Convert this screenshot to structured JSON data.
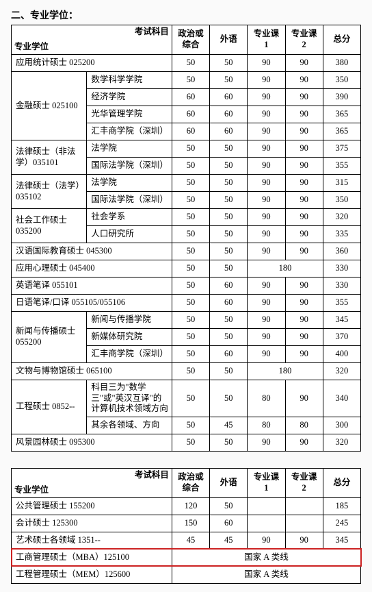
{
  "section_title": "二、专业学位：",
  "headers": {
    "diag_top": "考试科目",
    "diag_bottom": "专业学位",
    "c1": "政治或综合",
    "c2": "外语",
    "c3": "专业课 1",
    "c4": "专业课 2",
    "c5": "总分"
  },
  "t1": {
    "r0": {
      "deg": "应用统计硕士 025200",
      "v": [
        "50",
        "50",
        "90",
        "90",
        "380"
      ]
    },
    "fin": {
      "deg": "金融硕士 025100",
      "rows": [
        {
          "sub": "数学科学学院",
          "v": [
            "50",
            "50",
            "90",
            "90",
            "350"
          ]
        },
        {
          "sub": "经济学院",
          "v": [
            "60",
            "60",
            "90",
            "90",
            "390"
          ]
        },
        {
          "sub": "光华管理学院",
          "v": [
            "60",
            "60",
            "90",
            "90",
            "365"
          ]
        },
        {
          "sub": "汇丰商学院（深圳）",
          "v": [
            "60",
            "60",
            "90",
            "90",
            "365"
          ]
        }
      ]
    },
    "law1": {
      "deg": "法律硕士（非法学）035101",
      "rows": [
        {
          "sub": "法学院",
          "v": [
            "50",
            "50",
            "90",
            "90",
            "375"
          ]
        },
        {
          "sub": "国际法学院（深圳）",
          "v": [
            "50",
            "50",
            "90",
            "90",
            "355"
          ]
        }
      ]
    },
    "law2": {
      "deg": "法律硕士（法学）035102",
      "rows": [
        {
          "sub": "法学院",
          "v": [
            "50",
            "50",
            "90",
            "90",
            "315"
          ]
        },
        {
          "sub": "国际法学院（深圳）",
          "v": [
            "50",
            "50",
            "90",
            "90",
            "350"
          ]
        }
      ]
    },
    "soc": {
      "deg": "社会工作硕士 035200",
      "rows": [
        {
          "sub": "社会学系",
          "v": [
            "50",
            "50",
            "90",
            "90",
            "320"
          ]
        },
        {
          "sub": "人口研究所",
          "v": [
            "50",
            "50",
            "90",
            "90",
            "335"
          ]
        }
      ]
    },
    "r1": {
      "deg": "汉语国际教育硕士 045300",
      "v": [
        "50",
        "50",
        "90",
        "90",
        "360"
      ]
    },
    "r2": {
      "deg": "应用心理硕士 045400",
      "v": [
        "50",
        "50",
        "180",
        "",
        "330"
      ]
    },
    "r3": {
      "deg": "英语笔译 055101",
      "v": [
        "50",
        "60",
        "90",
        "90",
        "330"
      ]
    },
    "r4": {
      "deg": "日语笔译/口译 055105/055106",
      "v": [
        "50",
        "60",
        "90",
        "90",
        "355"
      ]
    },
    "news": {
      "deg": "新闻与传播硕士 055200",
      "rows": [
        {
          "sub": "新闻与传播学院",
          "v": [
            "50",
            "50",
            "90",
            "90",
            "345"
          ]
        },
        {
          "sub": "新媒体研究院",
          "v": [
            "50",
            "50",
            "90",
            "90",
            "370"
          ]
        },
        {
          "sub": "汇丰商学院（深圳）",
          "v": [
            "50",
            "60",
            "90",
            "90",
            "400"
          ]
        }
      ]
    },
    "r5": {
      "deg": "文物与博物馆硕士 065100",
      "v": [
        "50",
        "50",
        "180",
        "",
        "320"
      ]
    },
    "eng": {
      "deg": "工程硕士 0852--",
      "rows": [
        {
          "sub": "科目三为\"数学三\"或\"英汉互译\"的计算机技术领域方向",
          "v": [
            "50",
            "50",
            "80",
            "90",
            "340"
          ]
        },
        {
          "sub": "其余各领域、方向",
          "v": [
            "50",
            "45",
            "80",
            "80",
            "300"
          ]
        }
      ]
    },
    "r6": {
      "deg": "风景园林硕士 095300",
      "v": [
        "50",
        "50",
        "90",
        "90",
        "320"
      ]
    }
  },
  "t2": {
    "r0": {
      "deg": "公共管理硕士 155200",
      "v": [
        "120",
        "50",
        "",
        "",
        "185"
      ]
    },
    "r1": {
      "deg": "会计硕士 125300",
      "v": [
        "150",
        "60",
        "",
        "",
        "245"
      ]
    },
    "r2": {
      "deg": "艺术硕士各领域 1351--",
      "v": [
        "45",
        "45",
        "90",
        "90",
        "345"
      ]
    },
    "r3": {
      "deg": "工商管理硕士（MBA）125100",
      "merge": "国家 A 类线"
    },
    "r4": {
      "deg": "工程管理硕士（MEM）125600",
      "merge": "国家 A 类线"
    }
  }
}
